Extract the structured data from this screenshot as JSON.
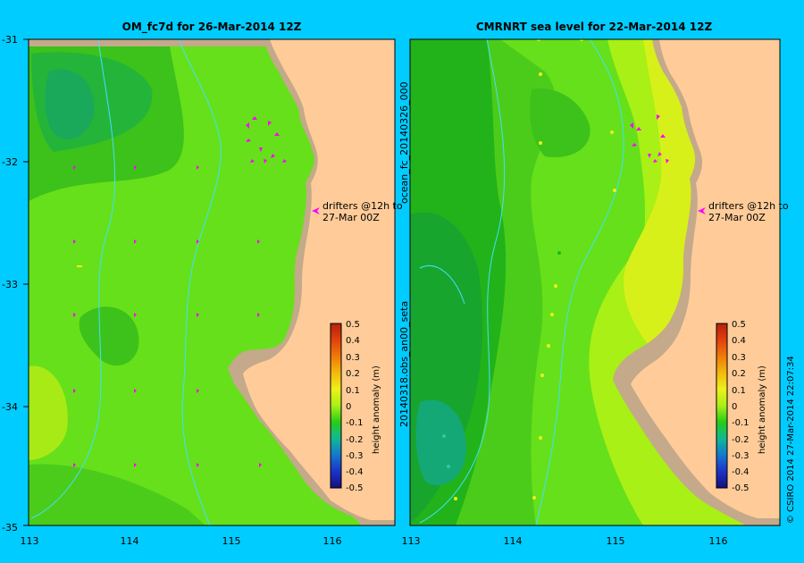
{
  "left_panel": {
    "title": "OM_fc7d for 26-Mar-2014 12Z",
    "annotation_line1": "drifters @12h to",
    "annotation_line2": "27-Mar 00Z"
  },
  "right_panel": {
    "title": "CMRNRT sea level  for 22-Mar-2014 12Z",
    "annotation_line1": "drifters @12h to",
    "annotation_line2": "27-Mar 00Z",
    "side_label_top": "ocean_fc_20140326_000",
    "side_label_bottom": "20140318.obs_an00_seta"
  },
  "axes": {
    "y_ticks": [
      "-31",
      "-32",
      "-33",
      "-34",
      "-35"
    ],
    "x_ticks": [
      "113",
      "114",
      "115",
      "116"
    ]
  },
  "colorbar": {
    "label": "height anomaly (m)",
    "ticks": [
      "0.5",
      "0.4",
      "0.3",
      "0.2",
      "0.1",
      "0",
      "-0.1",
      "-0.2",
      "-0.3",
      "-0.4",
      "-0.5"
    ],
    "colors": [
      "#b5200d",
      "#e2410c",
      "#f07a0a",
      "#f5b80c",
      "#eef01a",
      "#a8f016",
      "#27cc16",
      "#10b895",
      "#1478cf",
      "#1c32c8",
      "#14107c"
    ]
  },
  "credit": "© CSIRO 2014   27-Mar-2014 22:07:34",
  "colors": {
    "background": "#00ccff",
    "land": "#ffcc99",
    "shelf": "#c4a98a",
    "drifter_arrow": "#ff00ff"
  }
}
